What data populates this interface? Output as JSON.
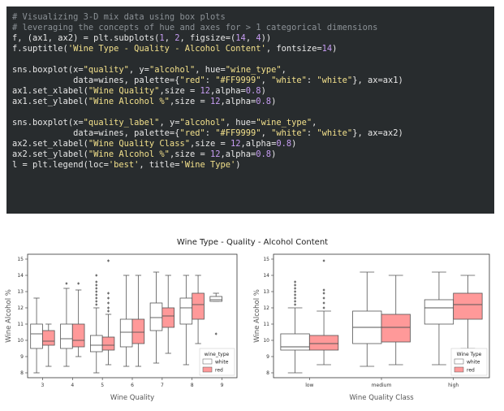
{
  "code": {
    "lines": [
      [
        {
          "t": "# Visualizing 3-D mix data using box plots",
          "c": "cm"
        }
      ],
      [
        {
          "t": "# leveraging the concepts of hue and axes for > 1 categorical dimensions",
          "c": "cm"
        }
      ],
      [
        {
          "t": "f, (ax1, ax2) = plt.subplots(",
          "c": ""
        },
        {
          "t": "1",
          "c": "nu"
        },
        {
          "t": ", ",
          "c": ""
        },
        {
          "t": "2",
          "c": "nu"
        },
        {
          "t": ", figsize=(",
          "c": ""
        },
        {
          "t": "14",
          "c": "nu"
        },
        {
          "t": ", ",
          "c": ""
        },
        {
          "t": "4",
          "c": "nu"
        },
        {
          "t": "))",
          "c": ""
        }
      ],
      [
        {
          "t": "f.suptitle(",
          "c": ""
        },
        {
          "t": "'Wine Type - Quality - Alcohol Content'",
          "c": "st"
        },
        {
          "t": ", fontsize=",
          "c": ""
        },
        {
          "t": "14",
          "c": "nu"
        },
        {
          "t": ")",
          "c": ""
        }
      ],
      [],
      [
        {
          "t": "sns.boxplot(x=",
          "c": ""
        },
        {
          "t": "\"quality\"",
          "c": "st"
        },
        {
          "t": ", y=",
          "c": ""
        },
        {
          "t": "\"alcohol\"",
          "c": "st"
        },
        {
          "t": ", hue=",
          "c": ""
        },
        {
          "t": "\"wine_type\"",
          "c": "st"
        },
        {
          "t": ",",
          "c": ""
        }
      ],
      [
        {
          "t": "            data=wines, palette={",
          "c": ""
        },
        {
          "t": "\"red\"",
          "c": "st"
        },
        {
          "t": ": ",
          "c": ""
        },
        {
          "t": "\"#FF9999\"",
          "c": "st"
        },
        {
          "t": ", ",
          "c": ""
        },
        {
          "t": "\"white\"",
          "c": "st"
        },
        {
          "t": ": ",
          "c": ""
        },
        {
          "t": "\"white\"",
          "c": "st"
        },
        {
          "t": "}, ax=ax1)",
          "c": ""
        }
      ],
      [
        {
          "t": "ax1.set_xlabel(",
          "c": ""
        },
        {
          "t": "\"Wine Quality\"",
          "c": "st"
        },
        {
          "t": ",size = ",
          "c": ""
        },
        {
          "t": "12",
          "c": "nu"
        },
        {
          "t": ",alpha=",
          "c": ""
        },
        {
          "t": "0.8",
          "c": "nu"
        },
        {
          "t": ")",
          "c": ""
        }
      ],
      [
        {
          "t": "ax1.set_ylabel(",
          "c": ""
        },
        {
          "t": "\"Wine Alcohol %\"",
          "c": "st"
        },
        {
          "t": ",size = ",
          "c": ""
        },
        {
          "t": "12",
          "c": "nu"
        },
        {
          "t": ",alpha=",
          "c": ""
        },
        {
          "t": "0.8",
          "c": "nu"
        },
        {
          "t": ")",
          "c": ""
        }
      ],
      [],
      [
        {
          "t": "sns.boxplot(x=",
          "c": ""
        },
        {
          "t": "\"quality_label\"",
          "c": "st"
        },
        {
          "t": ", y=",
          "c": ""
        },
        {
          "t": "\"alcohol\"",
          "c": "st"
        },
        {
          "t": ", hue=",
          "c": ""
        },
        {
          "t": "\"wine_type\"",
          "c": "st"
        },
        {
          "t": ",",
          "c": ""
        }
      ],
      [
        {
          "t": "            data=wines, palette={",
          "c": ""
        },
        {
          "t": "\"red\"",
          "c": "st"
        },
        {
          "t": ": ",
          "c": ""
        },
        {
          "t": "\"#FF9999\"",
          "c": "st"
        },
        {
          "t": ", ",
          "c": ""
        },
        {
          "t": "\"white\"",
          "c": "st"
        },
        {
          "t": ": ",
          "c": ""
        },
        {
          "t": "\"white\"",
          "c": "st"
        },
        {
          "t": "}, ax=ax2)",
          "c": ""
        }
      ],
      [
        {
          "t": "ax2.set_xlabel(",
          "c": ""
        },
        {
          "t": "\"Wine Quality Class\"",
          "c": "st"
        },
        {
          "t": ",size = ",
          "c": ""
        },
        {
          "t": "12",
          "c": "nu"
        },
        {
          "t": ",alpha=",
          "c": ""
        },
        {
          "t": "0.8",
          "c": "nu"
        },
        {
          "t": ")",
          "c": ""
        }
      ],
      [
        {
          "t": "ax2.set_ylabel(",
          "c": ""
        },
        {
          "t": "\"Wine Alcohol %\"",
          "c": "st"
        },
        {
          "t": ",size = ",
          "c": ""
        },
        {
          "t": "12",
          "c": "nu"
        },
        {
          "t": ",alpha=",
          "c": ""
        },
        {
          "t": "0.8",
          "c": "nu"
        },
        {
          "t": ")",
          "c": ""
        }
      ],
      [
        {
          "t": "l = plt.legend(loc=",
          "c": ""
        },
        {
          "t": "'best'",
          "c": "st"
        },
        {
          "t": ", title=",
          "c": ""
        },
        {
          "t": "'Wine Type'",
          "c": "st"
        },
        {
          "t": ")",
          "c": ""
        }
      ]
    ]
  },
  "colors": {
    "red": "#FF9999",
    "white": "#ffffff",
    "edge": "#555555",
    "code_bg": "#282c2e"
  },
  "chart_data": [
    {
      "type": "box",
      "title": "Wine Type - Quality - Alcohol Content",
      "xlabel": "Wine Quality",
      "ylabel": "Wine Alcohol %",
      "ylim": [
        7.7,
        15.3
      ],
      "yticks": [
        8,
        9,
        10,
        11,
        12,
        13,
        14,
        15
      ],
      "categories": [
        "3",
        "4",
        "5",
        "6",
        "7",
        "8",
        "9"
      ],
      "legend": {
        "title": "wine_type",
        "entries": [
          "white",
          "red"
        ],
        "position": "lower-right"
      },
      "series": [
        {
          "name": "white",
          "color": "#ffffff",
          "boxes": [
            {
              "whislo": 8.0,
              "q1": 9.5,
              "med": 10.4,
              "q3": 11.0,
              "whishi": 12.6,
              "fliers": []
            },
            {
              "whislo": 8.4,
              "q1": 9.5,
              "med": 10.1,
              "q3": 11.0,
              "whishi": 13.2,
              "fliers": [
                13.5
              ]
            },
            {
              "whislo": 8.0,
              "q1": 9.3,
              "med": 9.7,
              "q3": 10.3,
              "whishi": 12.0,
              "fliers": [
                12.2,
                12.4,
                12.6,
                12.8,
                13.0,
                13.2,
                13.4,
                13.6,
                14.0
              ]
            },
            {
              "whislo": 8.4,
              "q1": 9.6,
              "med": 10.5,
              "q3": 11.3,
              "whishi": 14.0,
              "fliers": []
            },
            {
              "whislo": 8.6,
              "q1": 10.6,
              "med": 11.4,
              "q3": 12.3,
              "whishi": 14.2,
              "fliers": []
            },
            {
              "whislo": 8.5,
              "q1": 11.0,
              "med": 12.0,
              "q3": 12.6,
              "whishi": 14.0,
              "fliers": []
            },
            {
              "whislo": 12.4,
              "q1": 12.4,
              "med": 12.5,
              "q3": 12.7,
              "whishi": 12.9,
              "fliers": [
                10.4
              ]
            }
          ]
        },
        {
          "name": "red",
          "color": "#FF9999",
          "boxes": [
            {
              "whislo": 8.4,
              "q1": 9.7,
              "med": 9.95,
              "q3": 10.6,
              "whishi": 11.0,
              "fliers": []
            },
            {
              "whislo": 9.0,
              "q1": 9.6,
              "med": 10.0,
              "q3": 11.0,
              "whishi": 13.1,
              "fliers": [
                13.5
              ]
            },
            {
              "whislo": 8.5,
              "q1": 9.4,
              "med": 9.7,
              "q3": 10.2,
              "whishi": 11.6,
              "fliers": [
                11.8,
                12.0,
                12.3,
                12.6,
                12.9,
                14.9
              ]
            },
            {
              "whislo": 8.4,
              "q1": 9.8,
              "med": 10.5,
              "q3": 11.3,
              "whishi": 14.0,
              "fliers": []
            },
            {
              "whislo": 9.2,
              "q1": 10.8,
              "med": 11.5,
              "q3": 12.0,
              "whishi": 14.0,
              "fliers": []
            },
            {
              "whislo": 9.8,
              "q1": 11.3,
              "med": 12.2,
              "q3": 12.9,
              "whishi": 14.0,
              "fliers": []
            }
          ]
        }
      ]
    },
    {
      "type": "box",
      "xlabel": "Wine Quality Class",
      "ylabel": "Wine Alcohol %",
      "ylim": [
        7.7,
        15.3
      ],
      "yticks": [
        8,
        9,
        10,
        11,
        12,
        13,
        14,
        15
      ],
      "categories": [
        "low",
        "medium",
        "high"
      ],
      "legend": {
        "title": "Wine Type",
        "entries": [
          "white",
          "red"
        ],
        "position": "lower-right"
      },
      "series": [
        {
          "name": "white",
          "color": "#ffffff",
          "boxes": [
            {
              "whislo": 8.0,
              "q1": 9.4,
              "med": 9.6,
              "q3": 10.4,
              "whishi": 12.0,
              "fliers": [
                12.2,
                12.4,
                12.6,
                12.8,
                13.0,
                13.2,
                13.4,
                13.6
              ]
            },
            {
              "whislo": 8.4,
              "q1": 9.8,
              "med": 10.8,
              "q3": 11.8,
              "whishi": 14.2,
              "fliers": []
            },
            {
              "whislo": 8.5,
              "q1": 11.0,
              "med": 12.0,
              "q3": 12.5,
              "whishi": 14.2,
              "fliers": []
            }
          ]
        },
        {
          "name": "red",
          "color": "#FF9999",
          "boxes": [
            {
              "whislo": 8.5,
              "q1": 9.4,
              "med": 9.8,
              "q3": 10.3,
              "whishi": 11.8,
              "fliers": [
                12.0,
                12.3,
                12.6,
                12.9,
                13.1,
                14.9
              ]
            },
            {
              "whislo": 8.5,
              "q1": 9.9,
              "med": 10.8,
              "q3": 11.6,
              "whishi": 14.0,
              "fliers": []
            },
            {
              "whislo": 9.5,
              "q1": 11.3,
              "med": 12.2,
              "q3": 12.9,
              "whishi": 14.0,
              "fliers": []
            }
          ]
        }
      ]
    }
  ]
}
